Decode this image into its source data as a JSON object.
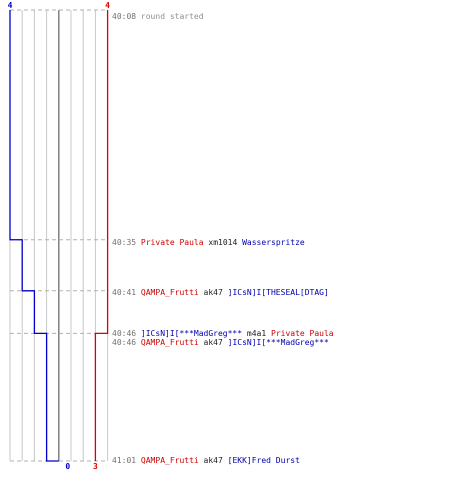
{
  "colors": {
    "team_blue": "#0000cc",
    "team_red": "#dd0000",
    "grid": "#c8c8c8",
    "center": "#808080",
    "dashed": "#b0b0b0"
  },
  "chart_data": {
    "type": "line",
    "title": "",
    "xlabel": "",
    "ylabel": "",
    "times": [
      "40:08",
      "40:35",
      "40:41",
      "40:46",
      "41:01"
    ],
    "series": [
      {
        "color": "#0000cc",
        "start_label": "4",
        "end_label": "0",
        "points": [
          {
            "time": "40:08",
            "alive": 4
          },
          {
            "time": "40:35",
            "alive": 3
          },
          {
            "time": "40:41",
            "alive": 2
          },
          {
            "time": "40:46",
            "alive": 1
          },
          {
            "time": "41:01",
            "alive": 0
          }
        ]
      },
      {
        "color": "#dd0000",
        "start_label": "4",
        "end_label": "3",
        "points": [
          {
            "time": "40:08",
            "alive": 4
          },
          {
            "time": "40:46",
            "alive": 3
          },
          {
            "time": "41:01",
            "alive": 3
          }
        ]
      }
    ]
  },
  "events": [
    {
      "time": "40:08",
      "note": "round started"
    },
    {
      "time": "40:35",
      "killer": "Private Paula",
      "killer_team": "red",
      "weapon": "xm1014",
      "victim": "Wasserspritze",
      "victim_team": "blue"
    },
    {
      "time": "40:41",
      "killer": "QAMPA_Frutti",
      "killer_team": "red",
      "weapon": "ak47",
      "victim": "]ICsN]I[THESEAL[DTAG]",
      "victim_team": "blue"
    },
    {
      "time": "40:46",
      "killer": "]ICsN]I[***MadGreg***",
      "killer_team": "blue",
      "weapon": "m4a1",
      "victim": "Private Paula",
      "victim_team": "red"
    },
    {
      "time": "40:46",
      "killer": "QAMPA_Frutti",
      "killer_team": "red",
      "weapon": "ak47",
      "victim": "]ICsN]I[***MadGreg***",
      "victim_team": "blue"
    },
    {
      "time": "41:01",
      "killer": "QAMPA_Frutti",
      "killer_team": "red",
      "weapon": "ak47",
      "victim": "[EKK]Fred Durst",
      "victim_team": "blue"
    }
  ]
}
